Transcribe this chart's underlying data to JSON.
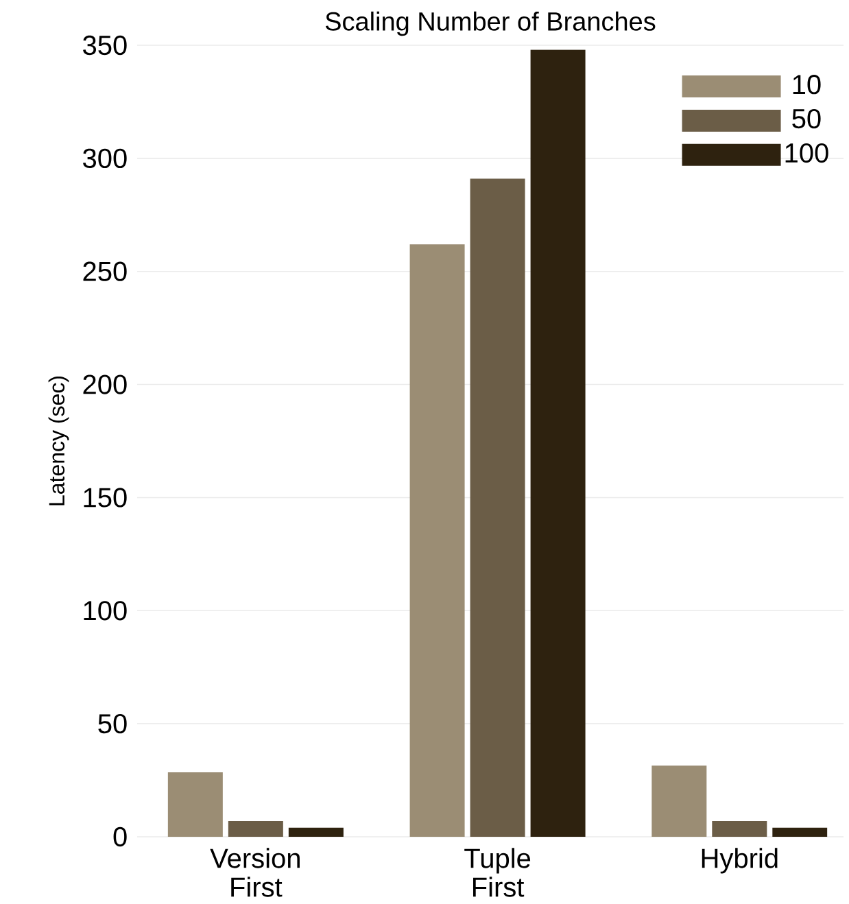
{
  "chart_data": {
    "type": "bar",
    "title": "Scaling Number of Branches",
    "ylabel": "Latency (sec)",
    "categories": [
      "Version First",
      "Tuple First",
      "Hybrid"
    ],
    "series": [
      {
        "name": "10",
        "color": "#9b8d74",
        "values": [
          28.5,
          262,
          31.5
        ]
      },
      {
        "name": "50",
        "color": "#6b5d47",
        "values": [
          7,
          291,
          7
        ]
      },
      {
        "name": "100",
        "color": "#2e220f",
        "values": [
          4,
          348,
          4
        ]
      }
    ],
    "ylim": [
      0,
      350
    ],
    "yticks": [
      0,
      50,
      100,
      150,
      200,
      250,
      300,
      350
    ],
    "grid": "y",
    "legend": "top right"
  }
}
